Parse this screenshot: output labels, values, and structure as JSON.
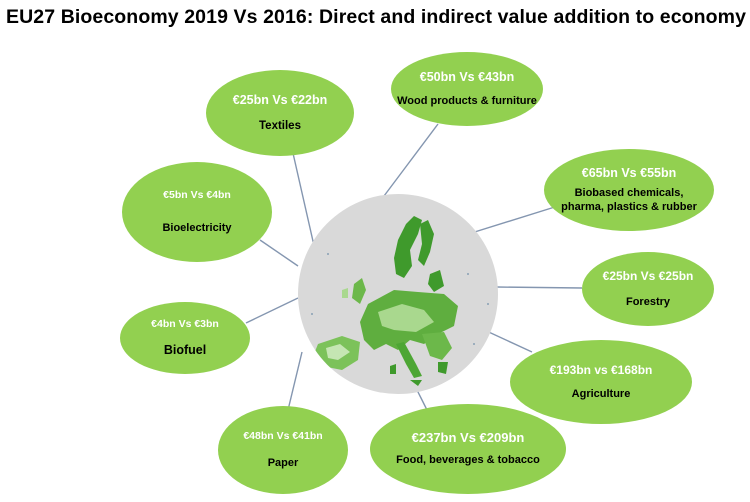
{
  "title": "EU27 Bioeconomy 2019 Vs 2016: Direct and indirect value addition to economy",
  "colors": {
    "bubble": "#92d050",
    "hub": "#d9d9d9",
    "map_green": "#3f9a2c",
    "lines": "#8496b0"
  },
  "bubbles": [
    {
      "id": "textiles",
      "value": "€25bn Vs €22bn",
      "label": "Textiles"
    },
    {
      "id": "wood",
      "value": "€50bn Vs €43bn",
      "label": "Wood products & furniture"
    },
    {
      "id": "biobased",
      "value": "€65bn Vs €55bn",
      "label": "Biobased chemicals, pharma, plastics & rubber"
    },
    {
      "id": "bioelectricity",
      "value": "€5bn Vs €4bn",
      "label": "Bioelectricity"
    },
    {
      "id": "forestry",
      "value": "€25bn Vs €25bn",
      "label": "Forestry"
    },
    {
      "id": "biofuel",
      "value": "€4bn Vs €3bn",
      "label": "Biofuel"
    },
    {
      "id": "agriculture",
      "value": "€193bn vs €168bn",
      "label": "Agriculture"
    },
    {
      "id": "paper",
      "value": "€48bn Vs €41bn",
      "label": "Paper"
    },
    {
      "id": "food",
      "value": "€237bn Vs €209bn",
      "label": "Food, beverages & tobacco"
    }
  ],
  "hub": {
    "image": "map-of-europe"
  }
}
